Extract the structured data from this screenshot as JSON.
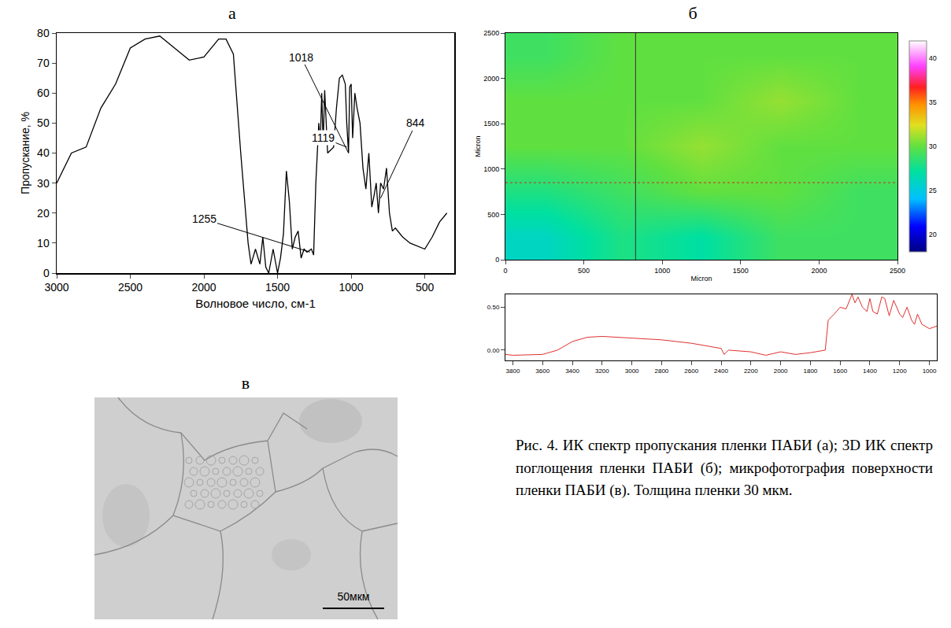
{
  "chart_data": [
    {
      "type": "line",
      "panel": "а",
      "x_label": "Волновое число, см-1",
      "y_label": "Пропускание, %",
      "xlim": [
        3000,
        300
      ],
      "xticks": [
        3000,
        2500,
        2000,
        1500,
        1000,
        500
      ],
      "ylim": [
        0,
        80
      ],
      "yticks": [
        0,
        10,
        20,
        30,
        40,
        50,
        60,
        70,
        80
      ],
      "grid": false,
      "color": "#000000",
      "x": [
        3000,
        2900,
        2800,
        2700,
        2600,
        2500,
        2400,
        2300,
        2200,
        2100,
        2000,
        1900,
        1850,
        1800,
        1750,
        1700,
        1680,
        1650,
        1620,
        1600,
        1580,
        1560,
        1530,
        1500,
        1480,
        1460,
        1440,
        1420,
        1400,
        1380,
        1360,
        1340,
        1320,
        1300,
        1270,
        1255,
        1240,
        1220,
        1210,
        1200,
        1190,
        1180,
        1160,
        1140,
        1119,
        1100,
        1080,
        1060,
        1040,
        1030,
        1018,
        1010,
        1000,
        990,
        975,
        960,
        940,
        920,
        900,
        880,
        860,
        844,
        830,
        815,
        800,
        780,
        760,
        740,
        720,
        700,
        650,
        600,
        550,
        500,
        450,
        400,
        350
      ],
      "values": [
        30,
        40,
        42,
        55,
        63,
        75,
        78,
        79,
        75,
        71,
        72,
        78,
        78,
        73,
        40,
        10,
        3,
        8,
        3,
        12,
        2,
        0,
        8,
        0,
        5,
        13,
        34,
        24,
        8,
        12,
        14,
        5,
        8,
        7,
        8,
        6,
        30,
        50,
        43,
        60,
        43,
        61,
        40,
        41,
        42,
        55,
        65,
        66,
        63,
        50,
        40,
        62,
        63,
        45,
        60,
        55,
        50,
        35,
        28,
        40,
        22,
        26,
        30,
        20,
        30,
        28,
        35,
        20,
        14,
        15,
        12,
        10,
        9,
        8,
        12,
        17,
        20
      ],
      "annotations": [
        {
          "text": "1255",
          "x": 1280,
          "y": 7,
          "ax": 2000,
          "ay": 18
        },
        {
          "text": "1018",
          "x": 1018,
          "y": 40,
          "ax": 1340,
          "ay": 72
        },
        {
          "text": "1119",
          "x": 1030,
          "y": 42,
          "ax": 1190,
          "ay": 45
        },
        {
          "text": "844",
          "x": 800,
          "y": 25,
          "ax": 560,
          "ay": 50
        }
      ]
    },
    {
      "type": "heatmap",
      "panel": "б",
      "x_label": "Micron",
      "y_label": "Micron",
      "xlim": [
        0,
        2500
      ],
      "xticks": [
        0,
        500,
        1000,
        1500,
        2000,
        2500
      ],
      "ylim": [
        0,
        2500
      ],
      "yticks": [
        0,
        500,
        1000,
        1500,
        2000,
        2500
      ],
      "x": [
        250,
        750,
        1250,
        1750,
        2250
      ],
      "y": [
        250,
        750,
        1250,
        1750,
        2250
      ],
      "z": [
        [
          26,
          28,
          27,
          29,
          29
        ],
        [
          28,
          29,
          30,
          30,
          29
        ],
        [
          30,
          30,
          31,
          30,
          30
        ],
        [
          30,
          30,
          30,
          31,
          30
        ],
        [
          29,
          30,
          30,
          30,
          30
        ]
      ],
      "colorbar_range": [
        18,
        42
      ],
      "colorbar_ticks": [
        20,
        25,
        30,
        35,
        40
      ],
      "crosshair": {
        "x": 830,
        "y": 850
      }
    },
    {
      "type": "line",
      "xlim": [
        3850,
        950
      ],
      "xticks": [
        3800,
        3600,
        3400,
        3200,
        3000,
        2800,
        2600,
        2400,
        2200,
        2000,
        1800,
        1600,
        1400,
        1200,
        1000
      ],
      "ylim": [
        -0.12,
        0.65
      ],
      "yticks": [
        {
          "value": 0,
          "label": "0.00"
        },
        {
          "value": 0.5,
          "label": "0.50"
        }
      ],
      "grid": false,
      "color": "#e03030",
      "x": [
        3850,
        3800,
        3600,
        3500,
        3400,
        3300,
        3200,
        3000,
        2800,
        2600,
        2400,
        2380,
        2350,
        2200,
        2100,
        2000,
        1900,
        1800,
        1700,
        1680,
        1640,
        1600,
        1560,
        1520,
        1500,
        1480,
        1450,
        1420,
        1400,
        1380,
        1350,
        1320,
        1300,
        1270,
        1240,
        1200,
        1180,
        1150,
        1120,
        1100,
        1080,
        1050,
        1000,
        950
      ],
      "values": [
        -0.05,
        -0.06,
        -0.05,
        0.0,
        0.1,
        0.15,
        0.16,
        0.14,
        0.12,
        0.08,
        0.02,
        -0.05,
        0.0,
        -0.02,
        -0.06,
        -0.02,
        -0.05,
        -0.03,
        0.0,
        0.35,
        0.42,
        0.5,
        0.48,
        0.65,
        0.55,
        0.62,
        0.5,
        0.45,
        0.6,
        0.45,
        0.42,
        0.62,
        0.6,
        0.4,
        0.58,
        0.42,
        0.38,
        0.5,
        0.35,
        0.3,
        0.42,
        0.3,
        0.25,
        0.28
      ]
    }
  ],
  "micrograph": {
    "panel": "в",
    "scale_bar": "50мкм"
  },
  "caption": "Рис. 4. ИК спектр пропускания пленки ПАБИ (а); 3D ИК спектр поглощения пленки ПАБИ (б); микрофотография поверхности пленки ПАБИ (в). Толщина пленки 30 мкм."
}
